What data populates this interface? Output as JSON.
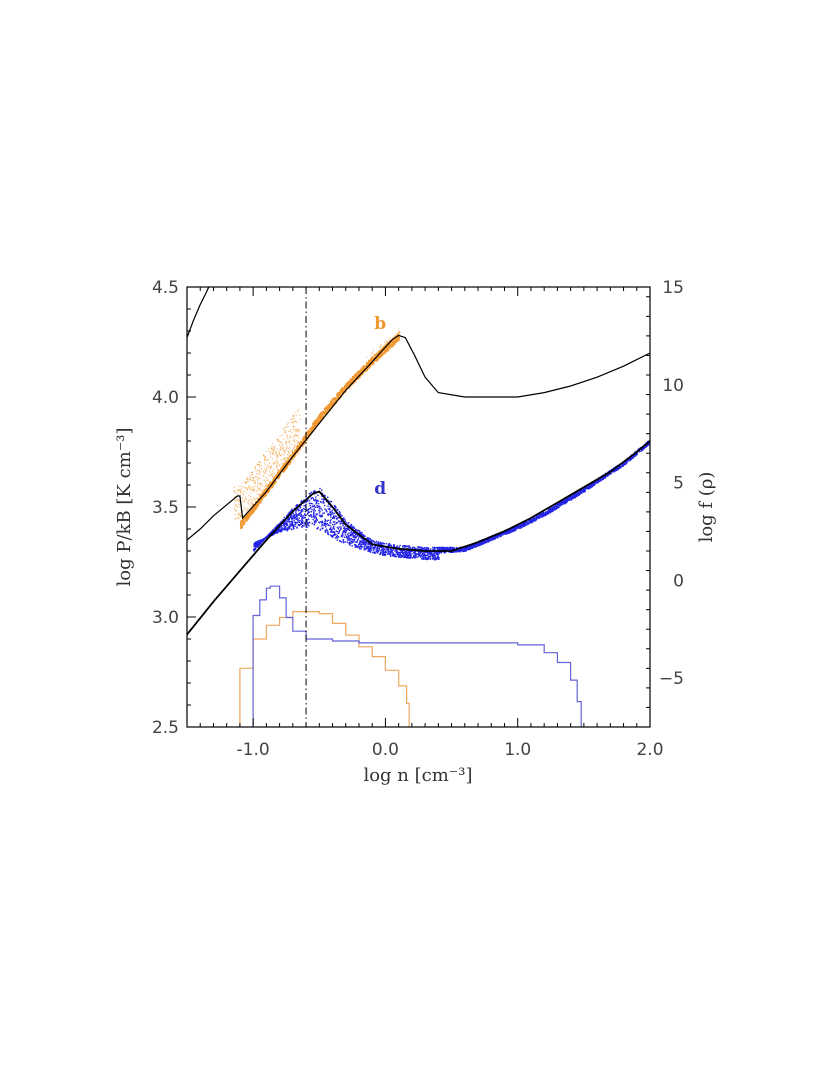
{
  "chart_data": {
    "type": "scatter",
    "xlabel": "log n [cm⁻³]",
    "ylabel": "log P/kB [K cm⁻³]",
    "ylabel_right": "log f (ρ)",
    "xlim": [
      -1.5,
      2.0
    ],
    "ylim": [
      2.5,
      4.5
    ],
    "ylim_right": [
      -7.5,
      15
    ],
    "xticks": [
      -1.0,
      0.0,
      1.0,
      2.0
    ],
    "xtick_labels": [
      "-1.0",
      "0.0",
      "1.0",
      "2.0"
    ],
    "yticks": [
      2.5,
      3.0,
      3.5,
      4.0,
      4.5
    ],
    "ytick_labels": [
      "2.5",
      "3.0",
      "3.5",
      "4.0",
      "4.5"
    ],
    "yticks_right": [
      -5,
      0,
      5,
      10,
      15
    ],
    "ytick_right_labels": [
      "−5",
      "0",
      "5",
      "10",
      "15"
    ],
    "vline_x": -0.6,
    "annotations": [
      {
        "text": "b",
        "x": -0.04,
        "y": 4.31,
        "color": "#f0972f"
      },
      {
        "text": "d",
        "x": -0.04,
        "y": 3.56,
        "color": "#3434c8"
      }
    ],
    "colors": {
      "b": "#f0972f",
      "d": "#2424e6",
      "curve": "#000000",
      "hist_b": "#f0a860",
      "hist_d": "#6464d8"
    },
    "curves": [
      {
        "name": "equilibrium curve (b)",
        "x": [
          -1.5,
          -1.4,
          -1.3,
          -1.2,
          -1.12,
          -1.1,
          -1.08,
          -0.9,
          -0.7,
          -0.5,
          -0.3,
          -0.1,
          0.05,
          0.1,
          0.15,
          0.22,
          0.3,
          0.4,
          0.6,
          0.8,
          1.0,
          1.2,
          1.4,
          1.6,
          1.8,
          2.0
        ],
        "y": [
          3.35,
          3.4,
          3.46,
          3.51,
          3.55,
          3.55,
          3.45,
          3.57,
          3.73,
          3.88,
          4.03,
          4.16,
          4.26,
          4.28,
          4.27,
          4.19,
          4.09,
          4.02,
          4.0,
          4.0,
          4.0,
          4.02,
          4.05,
          4.09,
          4.14,
          4.2
        ]
      },
      {
        "name": "high-pressure branch",
        "x": [
          -1.5,
          -1.45,
          -1.4,
          -1.35,
          -1.32
        ],
        "y": [
          4.27,
          4.35,
          4.42,
          4.48,
          4.52
        ]
      },
      {
        "name": "equilibrium curve (d)",
        "x": [
          -1.5,
          -1.3,
          -1.1,
          -0.9,
          -0.7,
          -0.55,
          -0.5,
          -0.4,
          -0.3,
          -0.1,
          0.1,
          0.3,
          0.5,
          0.7,
          0.9,
          1.1,
          1.3,
          1.5,
          1.7,
          1.9,
          2.0
        ],
        "y": [
          2.92,
          3.07,
          3.21,
          3.35,
          3.48,
          3.56,
          3.57,
          3.5,
          3.42,
          3.33,
          3.31,
          3.3,
          3.3,
          3.34,
          3.39,
          3.45,
          3.52,
          3.59,
          3.66,
          3.75,
          3.8
        ]
      }
    ],
    "series": [
      {
        "name": "b",
        "x": [
          -1.1,
          -0.9,
          -0.7,
          -0.5,
          -0.3,
          -0.1,
          0.1
        ],
        "y": [
          3.42,
          3.58,
          3.74,
          3.91,
          4.05,
          4.17,
          4.28
        ]
      },
      {
        "name": "d",
        "x": [
          -1.0,
          -0.8,
          -0.6,
          -0.5,
          -0.4,
          -0.2,
          0.0,
          0.2,
          0.4,
          0.6,
          0.8,
          1.0,
          1.2,
          1.5,
          1.8,
          2.0
        ],
        "y": [
          3.38,
          3.43,
          3.45,
          3.44,
          3.4,
          3.35,
          3.32,
          3.31,
          3.3,
          3.31,
          3.36,
          3.41,
          3.47,
          3.58,
          3.7,
          3.8
        ]
      }
    ],
    "histograms": [
      {
        "name": "b",
        "x": [
          -1.12,
          -1.1,
          -1.0,
          -0.9,
          -0.8,
          -0.7,
          -0.6,
          -0.5,
          -0.4,
          -0.3,
          -0.2,
          -0.1,
          0.0,
          0.1,
          0.16,
          0.18
        ],
        "logf": [
          -7.5,
          -4.5,
          -3.0,
          -2.3,
          -1.9,
          -1.6,
          -1.6,
          -1.7,
          -2.2,
          -2.8,
          -3.4,
          -3.9,
          -4.6,
          -5.4,
          -6.3,
          -7.5
        ]
      },
      {
        "name": "d",
        "x": [
          -1.01,
          -1.0,
          -0.95,
          -0.9,
          -0.87,
          -0.8,
          -0.75,
          -0.7,
          -0.6,
          -0.4,
          -0.2,
          0.0,
          0.2,
          0.4,
          0.6,
          0.8,
          1.0,
          1.2,
          1.3,
          1.4,
          1.45,
          1.48
        ],
        "logf": [
          -7.5,
          -1.8,
          -1.0,
          -0.4,
          -0.3,
          -0.9,
          -1.9,
          -2.6,
          -3.0,
          -3.1,
          -3.2,
          -3.2,
          -3.2,
          -3.2,
          -3.2,
          -3.2,
          -3.3,
          -3.7,
          -4.2,
          -5.1,
          -6.2,
          -7.5
        ]
      }
    ]
  }
}
